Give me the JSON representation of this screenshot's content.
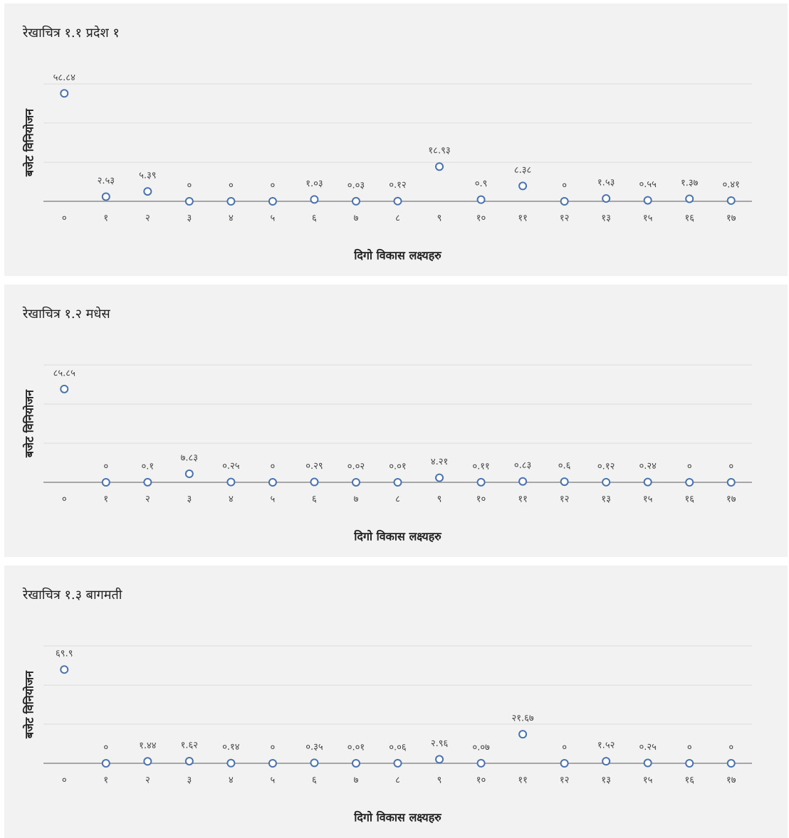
{
  "chart_data": [
    {
      "type": "scatter",
      "title": "रेखाचित्र १.१ प्रदेश १",
      "x_label": "दिगो  विकास लक्ष्यहरु",
      "y_label": "बजेट विनियोजन",
      "categories": [
        "०",
        "१",
        "२",
        "३",
        "४",
        "५",
        "६",
        "७",
        "८",
        "९",
        "१०",
        "११",
        "१२",
        "१३",
        "१५",
        "१६",
        "१७"
      ],
      "values": [
        58.84,
        2.53,
        5.39,
        0,
        0,
        0,
        1.03,
        0.03,
        0.12,
        18.93,
        0.9,
        8.38,
        0,
        1.53,
        0.55,
        1.37,
        0.41
      ],
      "value_labels": [
        "५८.८४",
        "२.५३",
        "५.३९",
        "०",
        "०",
        "०",
        "१.०३",
        "०.०३",
        "०.१२",
        "१८.९३",
        "०.९",
        "८.३८",
        "०",
        "१.५३",
        "०.५५",
        "१.३७",
        "०.४१"
      ],
      "color": "#4a72b0",
      "ylim": [
        0,
        64
      ],
      "yticks": [
        0,
        21.3,
        42.7,
        64
      ],
      "grid": true
    },
    {
      "type": "scatter",
      "title": "रेखाचित्र १.२ मधेस",
      "x_label": "दिगो  विकास लक्ष्यहरु",
      "y_label": "बजेट विनियोजन",
      "categories": [
        "०",
        "१",
        "२",
        "३",
        "४",
        "५",
        "६",
        "७",
        "८",
        "९",
        "१०",
        "११",
        "१२",
        "१३",
        "१५",
        "१६",
        "१७"
      ],
      "values": [
        85.85,
        0,
        0.1,
        7.83,
        0.25,
        0,
        0.29,
        0.02,
        0.01,
        4.21,
        0.11,
        0.83,
        0.6,
        0.12,
        0.24,
        0,
        0
      ],
      "value_labels": [
        "८५.८५",
        "०",
        "०.१",
        "७.८३",
        "०.२५",
        "०",
        "०.२९",
        "०.०२",
        "०.०१",
        "४.२१",
        "०.११",
        "०.८३",
        "०.६",
        "०.१२",
        "०.२४",
        "०",
        "०"
      ],
      "color": "#4a72b0",
      "ylim": [
        0,
        108
      ],
      "yticks": [
        0,
        36,
        72,
        108
      ],
      "grid": true
    },
    {
      "type": "scatter",
      "title": "रेखाचित्र १.३ बागमती",
      "x_label": "दिगो  विकास लक्ष्यहरु",
      "y_label": "बजेट विनियोजन",
      "categories": [
        "०",
        "१",
        "२",
        "३",
        "४",
        "५",
        "६",
        "७",
        "८",
        "९",
        "१०",
        "११",
        "१२",
        "१३",
        "१५",
        "१६",
        "१७"
      ],
      "values": [
        69.9,
        0,
        1.44,
        1.62,
        0.14,
        0,
        0.35,
        0.01,
        0.06,
        2.96,
        0.07,
        21.67,
        0,
        1.52,
        0.25,
        0,
        0
      ],
      "value_labels": [
        "६९.९",
        "०",
        "१.४४",
        "१.६२",
        "०.१४",
        "०",
        "०.३५",
        "०.०१",
        "०.०६",
        "२.९६",
        "०.०७",
        "२१.६७",
        "०",
        "१.५२",
        "०.२५",
        "०",
        "०"
      ],
      "color": "#4a72b0",
      "ylim": [
        0,
        87.5
      ],
      "yticks": [
        0,
        29.2,
        58.3,
        87.5
      ],
      "grid": true
    }
  ]
}
